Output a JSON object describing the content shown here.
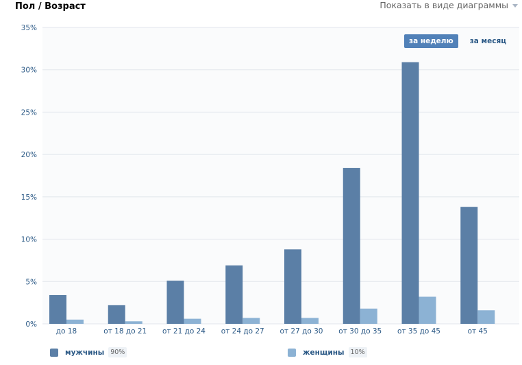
{
  "header": {
    "title": "Пол / Возраст",
    "view_switch_label": "Показать в виде диаграммы"
  },
  "period_toggle": {
    "week_label": "за неделю",
    "month_label": "за месяц",
    "active": "week"
  },
  "legend": {
    "men_label": "мужчины",
    "men_pct": "90%",
    "women_label": "женщины",
    "women_pct": "10%"
  },
  "colors": {
    "men": "#5b7fa6",
    "women": "#8cb2d4",
    "axis_text": "#2a5885",
    "grid": "#e1e6ec"
  },
  "chart_data": {
    "type": "bar",
    "categories": [
      "до 18",
      "от 18 до 21",
      "от 21 до 24",
      "от 24 до 27",
      "от 27 до 30",
      "от 30 до 35",
      "от 35 до 45",
      "от 45"
    ],
    "series": [
      {
        "name": "мужчины",
        "values": [
          3.4,
          2.2,
          5.1,
          6.9,
          8.8,
          18.4,
          30.9,
          13.8
        ]
      },
      {
        "name": "женщины",
        "values": [
          0.5,
          0.3,
          0.6,
          0.7,
          0.7,
          1.8,
          3.2,
          1.6
        ]
      }
    ],
    "ylim": [
      0,
      35
    ],
    "y_ticks": [
      "0%",
      "5%",
      "10%",
      "15%",
      "20%",
      "25%",
      "30%",
      "35%"
    ],
    "grid": true
  }
}
